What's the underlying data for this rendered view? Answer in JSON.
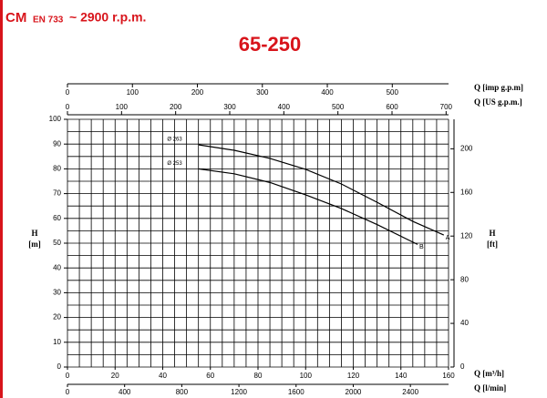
{
  "header": {
    "series": "CM",
    "standard": "EN 733",
    "speed": "~ 2900 r.p.m."
  },
  "chart_data": {
    "type": "line",
    "title": "65-250",
    "xlabel": "Q [m³/h]",
    "xlim": [
      0,
      160
    ],
    "xticks": [
      0,
      20,
      40,
      60,
      80,
      100,
      120,
      140,
      160
    ],
    "xgrid": [
      0,
      5,
      10,
      15,
      20,
      25,
      30,
      35,
      40,
      45,
      50,
      55,
      60,
      65,
      70,
      75,
      80,
      85,
      90,
      95,
      100,
      105,
      110,
      115,
      120,
      125,
      130,
      135,
      140,
      145,
      150,
      155,
      160
    ],
    "ylabel": "H",
    "ylabel_unit": "[m]",
    "ylim": [
      0,
      100
    ],
    "yticks": [
      0,
      10,
      20,
      30,
      40,
      50,
      60,
      70,
      80,
      90,
      100
    ],
    "ygrid": [
      0,
      5,
      10,
      15,
      20,
      25,
      30,
      35,
      40,
      45,
      50,
      55,
      60,
      65,
      70,
      75,
      80,
      85,
      90,
      95,
      100
    ],
    "y2label": "H",
    "y2label_unit": "[ft]",
    "y2lim": [
      0,
      227
    ],
    "y2ticks": [
      0,
      40,
      80,
      120,
      160,
      200
    ],
    "x_top_axes": [
      {
        "label": "Q [imp g.p.m]",
        "lim": [
          0,
          586.6
        ],
        "ticks": [
          0,
          100,
          200,
          300,
          400,
          500
        ]
      },
      {
        "label": "Q [US g.p.m.]",
        "lim": [
          0,
          704.5
        ],
        "ticks": [
          0,
          100,
          200,
          300,
          400,
          500,
          600,
          700
        ]
      }
    ],
    "x_bottom_axis2": {
      "label": "Q [l/min]",
      "lim": [
        0,
        2667
      ],
      "ticks": [
        0,
        400,
        800,
        1200,
        1600,
        2000,
        2400
      ]
    },
    "series": [
      {
        "name": "Ø 263",
        "end_label": "A",
        "color": "#000000",
        "x": [
          55,
          70,
          85,
          100,
          115,
          130,
          145,
          158
        ],
        "values": [
          89.7,
          87.5,
          84.2,
          79.8,
          73.9,
          66.5,
          58.8,
          53.3
        ]
      },
      {
        "name": "Ø 253",
        "end_label": "B",
        "color": "#000000",
        "x": [
          55,
          70,
          85,
          100,
          115,
          130,
          147
        ],
        "values": [
          80,
          78,
          74.5,
          69.5,
          64,
          57.5,
          49.5
        ]
      }
    ]
  }
}
